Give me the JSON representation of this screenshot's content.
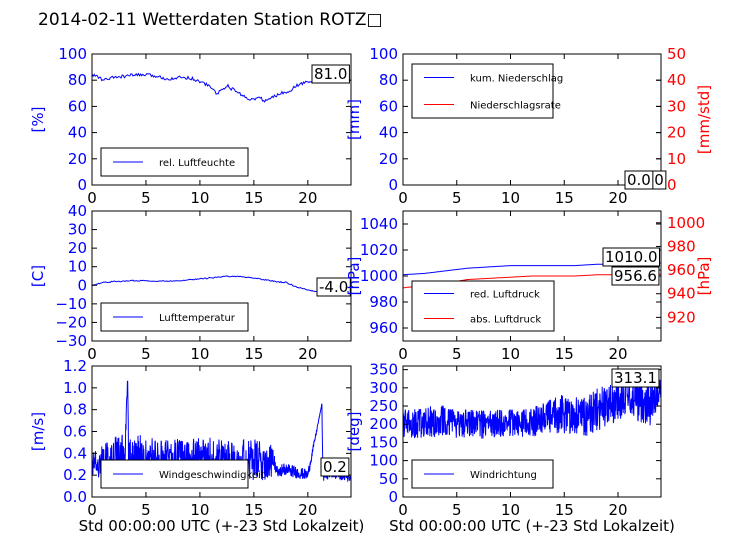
{
  "title": "2014-02-11 Wetterdaten Station ROTZ□",
  "colors": {
    "blue": "#0000ff",
    "red": "#ff0000",
    "black": "#000000"
  },
  "chart_data": [
    {
      "id": "humidity",
      "type": "line",
      "ylabel": "[%]",
      "ylim": [
        0,
        100
      ],
      "yticks": [
        "0",
        "20",
        "40",
        "60",
        "80",
        "100"
      ],
      "xlim": [
        0,
        24
      ],
      "xticks": [
        "0",
        "5",
        "10",
        "15",
        "20"
      ],
      "xlabel": "",
      "legend": "bottom-left",
      "annotation": "81.0",
      "series": [
        {
          "name": "rel. Luftfeuchte",
          "color": "#0000ff",
          "x": [
            0,
            0.5,
            1,
            2,
            3,
            4,
            5,
            6,
            7,
            8,
            9,
            10,
            10.5,
            11,
            11.5,
            12,
            12.5,
            13,
            13.5,
            14,
            14.5,
            15,
            15.5,
            16,
            16.5,
            17,
            17.5,
            18,
            18.5,
            19,
            20,
            21,
            22,
            23,
            24
          ],
          "y": [
            84,
            83,
            80,
            82,
            83,
            84,
            84,
            83,
            81,
            82,
            82,
            79,
            77,
            75,
            70,
            72,
            76,
            73,
            71,
            68,
            66,
            65,
            67,
            64,
            66,
            68,
            70,
            71,
            73,
            76,
            79,
            81,
            82,
            81,
            80
          ]
        }
      ]
    },
    {
      "id": "rain",
      "type": "line",
      "ylabel": "[mm]",
      "ylim": [
        0,
        100
      ],
      "yticks": [
        "0",
        "20",
        "40",
        "60",
        "80",
        "100"
      ],
      "y2label": "[mm/std]",
      "y2lim": [
        0,
        50
      ],
      "y2ticks": [
        "0",
        "10",
        "20",
        "30",
        "40",
        "50"
      ],
      "xlim": [
        0,
        24
      ],
      "xticks": [
        "0",
        "5",
        "10",
        "15",
        "20"
      ],
      "xlabel": "",
      "legend": "top-left",
      "annotation": "0.0",
      "annotation2": "0.0",
      "series": [
        {
          "name": "kum. Niederschlag",
          "color": "#0000ff",
          "axis": "left",
          "x": [
            0,
            24
          ],
          "y": [
            0,
            0
          ]
        },
        {
          "name": "Niederschlagsrate",
          "color": "#ff0000",
          "axis": "right",
          "x": [
            0,
            24
          ],
          "y": [
            0,
            0
          ]
        }
      ]
    },
    {
      "id": "temp",
      "type": "line",
      "ylabel": "[C]",
      "ylim": [
        -30,
        40
      ],
      "yticks": [
        "−30",
        "−20",
        "−10",
        "0",
        "10",
        "20",
        "30",
        "40"
      ],
      "xlim": [
        0,
        24
      ],
      "xticks": [
        "0",
        "5",
        "10",
        "15",
        "20"
      ],
      "xlabel": "",
      "legend": "bottom-left",
      "annotation": "-4.0",
      "series": [
        {
          "name": "Lufttemperatur",
          "color": "#0000ff",
          "x": [
            0,
            1,
            2,
            3,
            4,
            5,
            6,
            7,
            8,
            9,
            10,
            11,
            12,
            13,
            14,
            15,
            16,
            17,
            18,
            19,
            20,
            21,
            22,
            23,
            24
          ],
          "y": [
            0,
            1.5,
            2,
            2.2,
            2.5,
            2.5,
            2.3,
            2.2,
            2.5,
            3,
            3.5,
            4,
            4.5,
            5,
            4.5,
            4,
            3,
            2,
            1.5,
            -1,
            -2.5,
            -3.5,
            -4,
            -4,
            -4
          ]
        }
      ]
    },
    {
      "id": "pressure",
      "type": "line",
      "ylabel": "[hPa]",
      "ylim": [
        950,
        1050
      ],
      "yticks": [
        "960",
        "980",
        "1000",
        "1020",
        "1040"
      ],
      "y2label": "[hPa]",
      "y2lim": [
        900,
        1010
      ],
      "y2ticks": [
        "920",
        "940",
        "960",
        "980",
        "1000"
      ],
      "xlim": [
        0,
        24
      ],
      "xticks": [
        "0",
        "5",
        "10",
        "15",
        "20"
      ],
      "xlabel": "",
      "legend": "bottom-left",
      "annotation": "1010.0",
      "annotation2": "956.6",
      "series": [
        {
          "name": "red. Luftdruck",
          "color": "#0000ff",
          "axis": "left",
          "x": [
            0,
            2,
            4,
            6,
            8,
            10,
            12,
            14,
            16,
            18,
            20,
            22,
            24
          ],
          "y": [
            1001,
            1002,
            1004,
            1006,
            1007,
            1008,
            1008,
            1008,
            1008,
            1009,
            1009,
            1010,
            1010
          ]
        },
        {
          "name": "abs. Luftdruck",
          "color": "#ff0000",
          "axis": "right",
          "x": [
            0,
            2,
            4,
            6,
            8,
            10,
            12,
            14,
            16,
            18,
            20,
            22,
            24
          ],
          "y": [
            945,
            947,
            949,
            952,
            953,
            954,
            955,
            955,
            955,
            956,
            956,
            956.6,
            956.6
          ]
        }
      ]
    },
    {
      "id": "wind",
      "type": "line",
      "ylabel": "[m/s]",
      "ylim": [
        0,
        1.2
      ],
      "yticks": [
        "0.0",
        "0.2",
        "0.4",
        "0.6",
        "0.8",
        "1.0",
        "1.2"
      ],
      "xlim": [
        0,
        24
      ],
      "xticks": [
        "0",
        "5",
        "10",
        "15",
        "20"
      ],
      "xlabel": "Std 00:00:00 UTC (+-23 Std Lokalzeit)",
      "legend": "bottom-left",
      "annotation": "0.2",
      "series": [
        {
          "name": "Windgeschwindigkeit",
          "color": "#0000ff",
          "noisy": true,
          "x": [
            0,
            3,
            3.3,
            3.4,
            6,
            10,
            15,
            16.8,
            17,
            18,
            20,
            21.3,
            21.4,
            22,
            24
          ],
          "y": [
            0.3,
            0.35,
            1.06,
            0.35,
            0.33,
            0.35,
            0.33,
            0.32,
            0.25,
            0.25,
            0.2,
            0.85,
            0.2,
            0.22,
            0.18
          ],
          "amp": [
            0.12,
            0.25,
            0,
            0.25,
            0.2,
            0.2,
            0.2,
            0.15,
            0.06,
            0.06,
            0.05,
            0,
            0.06,
            0.05,
            0.04
          ]
        }
      ]
    },
    {
      "id": "winddir",
      "type": "line",
      "ylabel": "[deg]",
      "ylim": [
        0,
        360
      ],
      "yticks": [
        "0",
        "50",
        "100",
        "150",
        "200",
        "250",
        "300",
        "350"
      ],
      "xlim": [
        0,
        24
      ],
      "xticks": [
        "0",
        "5",
        "10",
        "15",
        "20"
      ],
      "xlabel": "Std 00:00:00 UTC (+-23 Std Lokalzeit)",
      "legend": "bottom-left",
      "annotation": "313.1",
      "series": [
        {
          "name": "Windrichtung",
          "color": "#0000ff",
          "noisy": true,
          "x": [
            0,
            3,
            6,
            9,
            12,
            15,
            16,
            17,
            18,
            19,
            20,
            21,
            22,
            23,
            24
          ],
          "y": [
            200,
            210,
            200,
            200,
            205,
            230,
            225,
            220,
            240,
            250,
            270,
            280,
            270,
            260,
            300
          ],
          "amp": [
            40,
            45,
            40,
            40,
            40,
            55,
            55,
            55,
            60,
            60,
            60,
            60,
            65,
            65,
            30
          ]
        }
      ]
    }
  ]
}
